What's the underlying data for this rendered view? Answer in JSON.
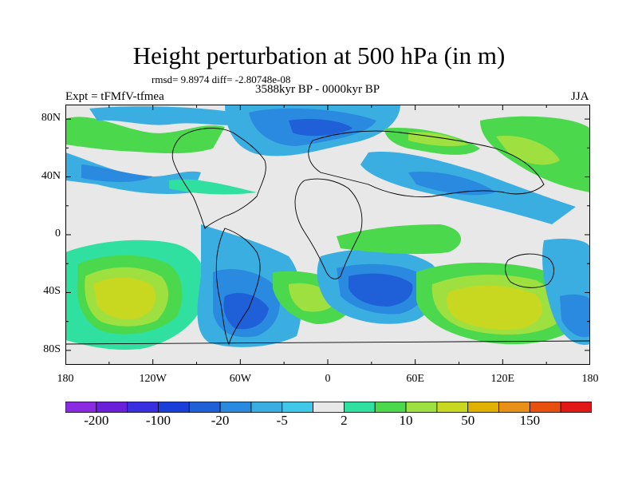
{
  "title": "Height perturbation at 500 hPa (in m)",
  "stats_line": "rmsd= 9.8974 diff= -2.80748e-08",
  "experiment": "Expt = tFMfV-tfmea",
  "period": "3588kyr BP - 0000kyr BP",
  "season": "JJA",
  "map": {
    "projection": "cylindrical-equidistant",
    "lon_range": [
      -180,
      180
    ],
    "lat_range": [
      -90,
      90
    ],
    "lat_tick_labels": [
      "80N",
      "40N",
      "0",
      "40S",
      "80S"
    ],
    "lon_tick_labels": [
      "180",
      "120W",
      "60W",
      "0",
      "60E",
      "120E",
      "180"
    ]
  },
  "colorbar": {
    "colors": [
      "#8a2be2",
      "#6a1fd8",
      "#3a2fe0",
      "#1a3fd8",
      "#1f5fd8",
      "#2a8ae0",
      "#3aaee0",
      "#40c8e8",
      "#e8e8e8",
      "#30e0a0",
      "#4cd84c",
      "#9ee040",
      "#c8d820",
      "#e0b000",
      "#e89018",
      "#e85010",
      "#e01818"
    ],
    "shown_labels": [
      "-200",
      "-100",
      "-20",
      "-5",
      "2",
      "10",
      "50",
      "150"
    ]
  }
}
